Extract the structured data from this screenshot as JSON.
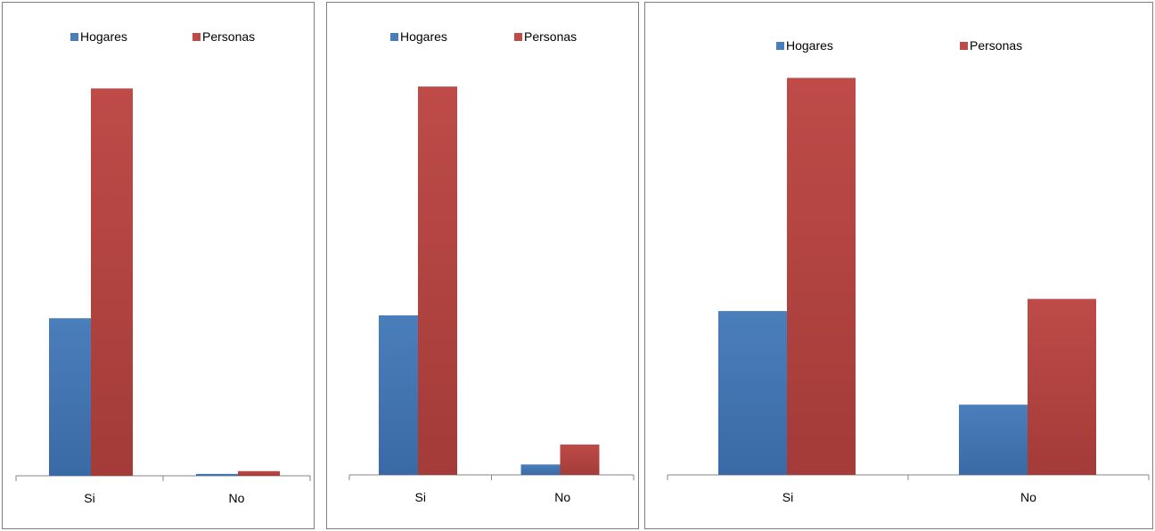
{
  "chart_data": [
    {
      "type": "bar",
      "categories": [
        "Si",
        "No"
      ],
      "series": [
        {
          "name": "Hogares",
          "values": [
            170,
            2
          ]
        },
        {
          "name": "Personas",
          "values": [
            418,
            5
          ]
        }
      ],
      "ylim": [
        0,
        450
      ],
      "grid": false,
      "legend": "top"
    },
    {
      "type": "bar",
      "categories": [
        "Si",
        "No"
      ],
      "series": [
        {
          "name": "Hogares",
          "values": [
            184,
            12
          ]
        },
        {
          "name": "Personas",
          "values": [
            448,
            35
          ]
        }
      ],
      "ylim": [
        0,
        480
      ],
      "grid": false,
      "legend": "top"
    },
    {
      "type": "bar",
      "categories": [
        "Si",
        "No"
      ],
      "series": [
        {
          "name": "Hogares",
          "values": [
            189,
            81
          ]
        },
        {
          "name": "Personas",
          "values": [
            458,
            203
          ]
        }
      ],
      "ylim": [
        0,
        480
      ],
      "grid": false,
      "legend": "top"
    }
  ],
  "colors": {
    "hogares": "#4a7ebb",
    "personas": "#be4b48",
    "axis": "#868686",
    "border": "#7f7f7f"
  }
}
